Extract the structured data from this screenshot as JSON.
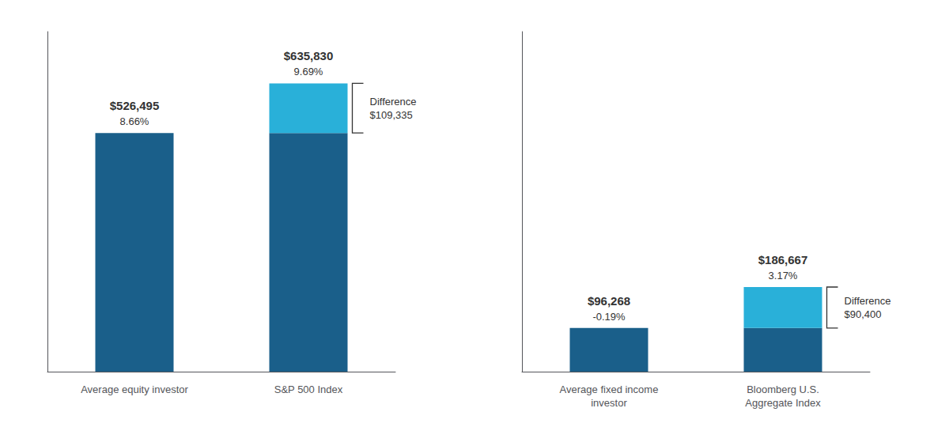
{
  "chart_data": [
    {
      "type": "bar",
      "stacked": true,
      "grid": false,
      "tick_labels": "x",
      "categories": [
        "Average equity investor",
        "S&P 500 Index"
      ],
      "series": [
        {
          "color": "#1a5f8a",
          "values": [
            526495,
            526495
          ]
        },
        {
          "color": "#29b0d9",
          "values": [
            0,
            109335
          ]
        }
      ],
      "total_labels": [
        "$526,495",
        "$635,830"
      ],
      "rate_labels": [
        "8.66%",
        "9.69%"
      ],
      "difference_label": "Difference\n$109,335",
      "ylim": [
        0,
        750000
      ]
    },
    {
      "type": "bar",
      "stacked": true,
      "grid": false,
      "tick_labels": "x",
      "categories": [
        "Average fixed income\ninvestor",
        "Bloomberg U.S.\nAggregate Index"
      ],
      "series": [
        {
          "color": "#1a5f8a",
          "values": [
            96268,
            96268
          ]
        },
        {
          "color": "#29b0d9",
          "values": [
            0,
            90400
          ]
        }
      ],
      "total_labels": [
        "$96,268",
        "$186,667"
      ],
      "rate_labels": [
        "-0.19%",
        "3.17%"
      ],
      "difference_label": "Difference\n$90,400",
      "ylim": [
        0,
        750000
      ]
    }
  ]
}
